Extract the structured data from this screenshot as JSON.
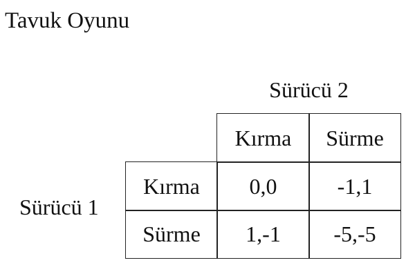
{
  "title": "Tavuk Oyunu",
  "player2": "Sürücü 2",
  "player1": "Sürücü 1",
  "columns": [
    "Kırma",
    "Sürme"
  ],
  "rows": [
    {
      "label": "Kırma",
      "cells": [
        "0,0",
        "-1,1"
      ]
    },
    {
      "label": "Sürme",
      "cells": [
        "1,-1",
        "-5,-5"
      ]
    }
  ]
}
